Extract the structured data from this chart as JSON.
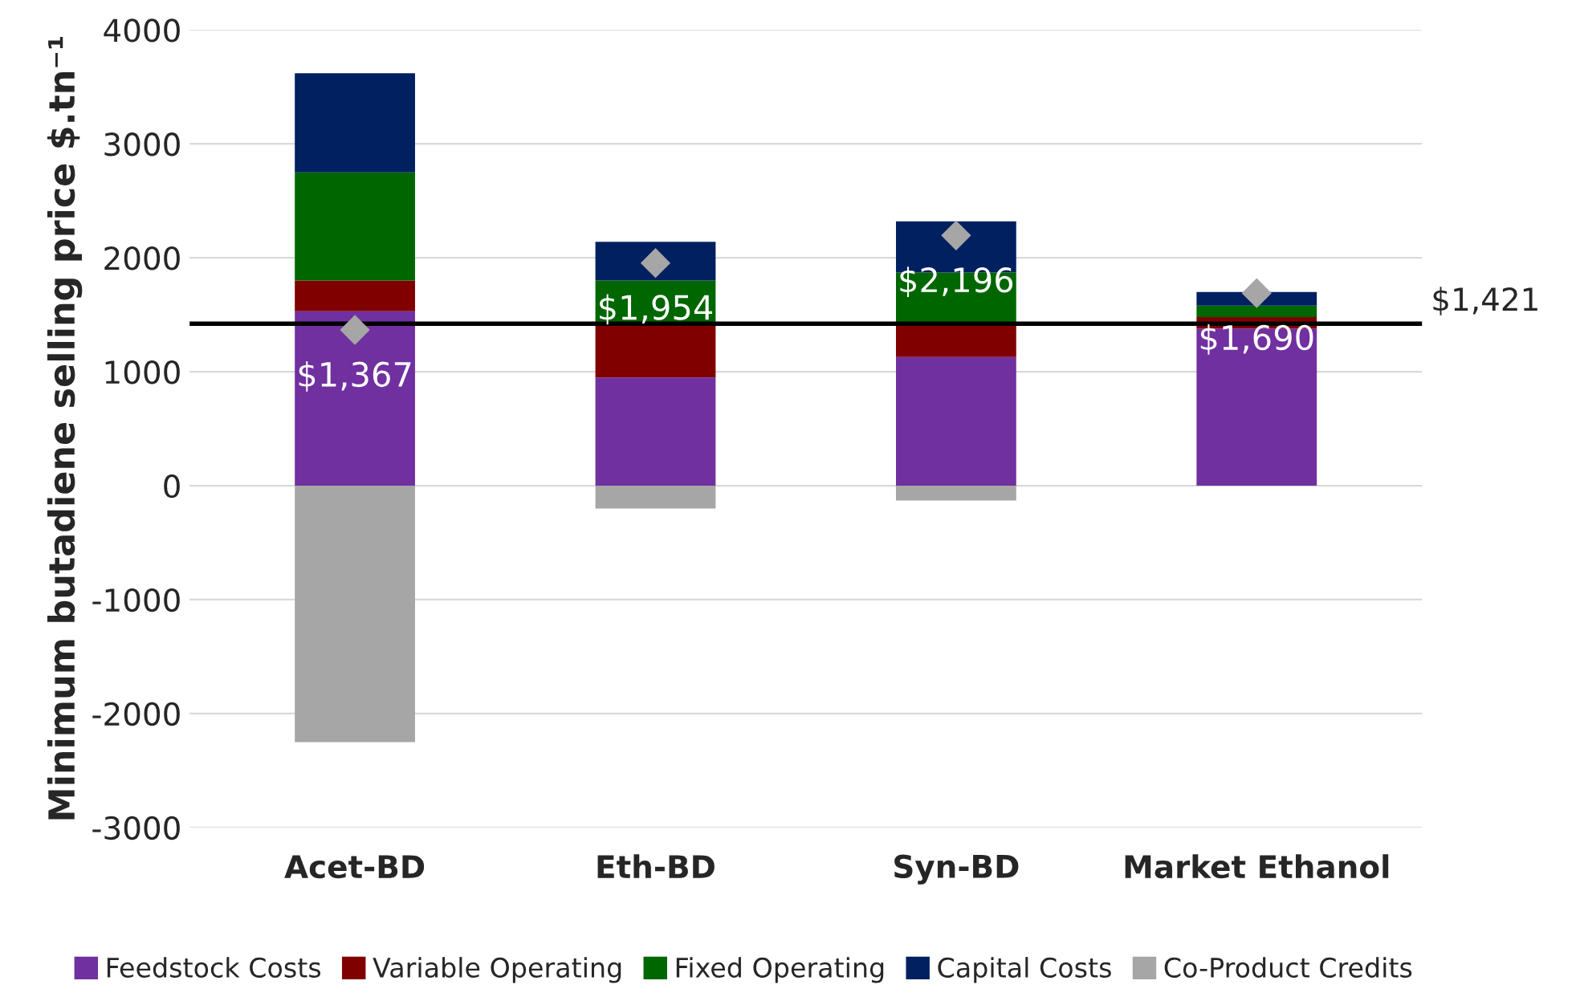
{
  "chart_data": {
    "type": "bar",
    "ylabel": "Minimum butadiene selling price $.tn⁻¹",
    "categories": [
      "Acet-BD",
      "Eth-BD",
      "Syn-BD",
      "Market Ethanol"
    ],
    "stacked": true,
    "series": [
      {
        "name": "Feedstock Costs",
        "color": "#7030a0",
        "values": [
          1530,
          950,
          1130,
          1380
        ]
      },
      {
        "name": "Variable Operating",
        "color": "#800000",
        "values": [
          270,
          460,
          300,
          100
        ]
      },
      {
        "name": "Fixed Operating",
        "color": "#006600",
        "values": [
          950,
          390,
          440,
          100
        ]
      },
      {
        "name": "Capital Costs",
        "color": "#002060",
        "values": [
          870,
          340,
          450,
          120
        ]
      },
      {
        "name": "Co-Product Credits",
        "color": "#a6a6a6",
        "values": [
          -2250,
          -200,
          -130,
          null
        ]
      },
      {
        "type": "scatter",
        "marker": "diamond",
        "color": "#a6a6a6",
        "x": [
          "Acet-BD",
          "Eth-BD",
          "Syn-BD",
          "Market Ethanol"
        ],
        "values": [
          1367,
          1954,
          2196,
          1690
        ],
        "value_labels": [
          "$1,367",
          "$1,954",
          "$2,196",
          "$1,690"
        ]
      }
    ],
    "ref_lines": [
      {
        "axis": "y",
        "value": 1421,
        "label": "$1,421",
        "color": "#000000"
      }
    ],
    "ylim": [
      -3000,
      4000
    ],
    "yticks": [
      -3000,
      -2000,
      -1000,
      0,
      1000,
      2000,
      3000,
      4000
    ],
    "grid": "y",
    "legend": "bottom"
  }
}
